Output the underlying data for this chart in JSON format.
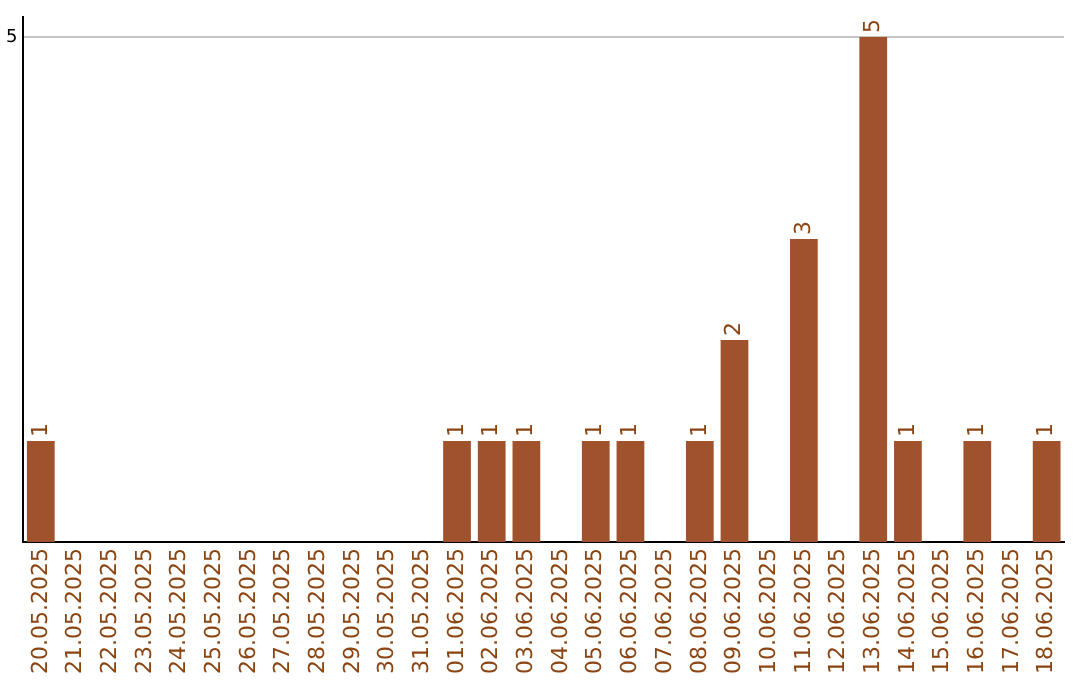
{
  "chart_data": {
    "type": "bar",
    "categories": [
      "20.05.2025",
      "21.05.2025",
      "22.05.2025",
      "23.05.2025",
      "24.05.2025",
      "25.05.2025",
      "26.05.2025",
      "27.05.2025",
      "28.05.2025",
      "29.05.2025",
      "30.05.2025",
      "31.05.2025",
      "01.06.2025",
      "02.06.2025",
      "03.06.2025",
      "04.06.2025",
      "05.06.2025",
      "06.06.2025",
      "07.06.2025",
      "08.06.2025",
      "09.06.2025",
      "10.06.2025",
      "11.06.2025",
      "12.06.2025",
      "13.06.2025",
      "14.06.2025",
      "15.06.2025",
      "16.06.2025",
      "17.06.2025",
      "18.06.2025"
    ],
    "values": [
      1,
      0,
      0,
      0,
      0,
      0,
      0,
      0,
      0,
      0,
      0,
      0,
      1,
      1,
      1,
      0,
      1,
      1,
      0,
      1,
      2,
      0,
      3,
      0,
      5,
      1,
      0,
      1,
      0,
      1
    ],
    "value_labels": [
      "1",
      null,
      null,
      null,
      null,
      null,
      null,
      null,
      null,
      null,
      null,
      null,
      "1",
      "1",
      "1",
      null,
      "1",
      "1",
      null,
      "1",
      "2",
      null,
      "3",
      null,
      "5",
      "1",
      null,
      "1",
      null,
      "1"
    ],
    "color": "#a0522d",
    "ylim": [
      0,
      5.2
    ],
    "yticks": [
      5
    ],
    "grid": "y",
    "legend": false
  }
}
